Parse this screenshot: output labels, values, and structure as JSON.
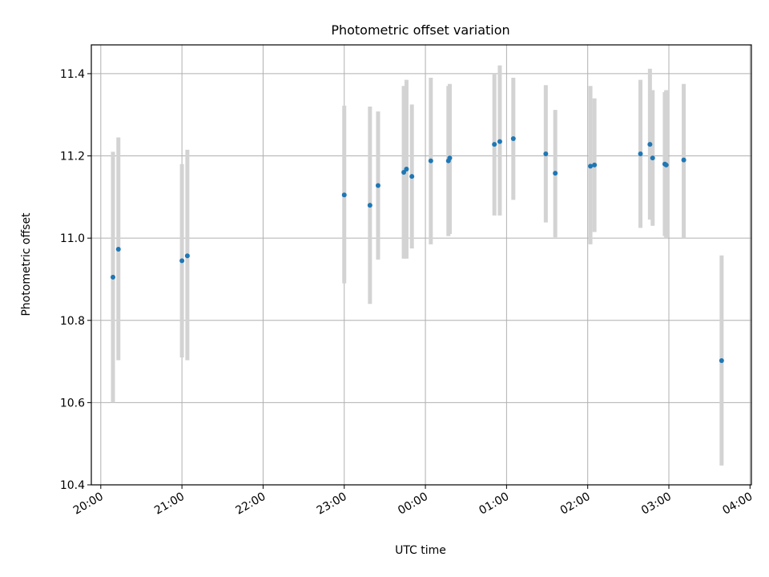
{
  "chart_data": {
    "type": "scatter",
    "title": "Photometric offset variation",
    "xlabel": "UTC time",
    "ylabel": "Photometric offset",
    "x_unit": "UTC",
    "xlim": [
      "19:53",
      "04:01"
    ],
    "ylim": [
      10.4,
      11.47
    ],
    "x_ticks": [
      "20:00",
      "21:00",
      "22:00",
      "23:00",
      "00:00",
      "01:00",
      "02:00",
      "03:00",
      "04:00"
    ],
    "y_ticks": [
      "10.4",
      "10.6",
      "10.8",
      "11.0",
      "11.2",
      "11.4"
    ],
    "grid": true,
    "colors": {
      "points": "#1f77b4",
      "errorbars": "#d3d3d3",
      "grid": "#b0b0b0"
    },
    "points": [
      {
        "x": "20:09",
        "y": 10.905,
        "ylow": 10.6,
        "yhigh": 11.21
      },
      {
        "x": "20:13",
        "y": 10.973,
        "ylow": 10.703,
        "yhigh": 11.245
      },
      {
        "x": "21:00",
        "y": 10.945,
        "ylow": 10.71,
        "yhigh": 11.18
      },
      {
        "x": "21:04",
        "y": 10.957,
        "ylow": 10.703,
        "yhigh": 11.215
      },
      {
        "x": "23:00",
        "y": 11.105,
        "ylow": 10.89,
        "yhigh": 11.322
      },
      {
        "x": "23:19",
        "y": 11.08,
        "ylow": 10.84,
        "yhigh": 11.32
      },
      {
        "x": "23:25",
        "y": 11.128,
        "ylow": 10.948,
        "yhigh": 11.308
      },
      {
        "x": "23:44",
        "y": 11.16,
        "ylow": 10.95,
        "yhigh": 11.37
      },
      {
        "x": "23:46",
        "y": 11.168,
        "ylow": 10.95,
        "yhigh": 11.385
      },
      {
        "x": "23:50",
        "y": 11.15,
        "ylow": 10.975,
        "yhigh": 11.325
      },
      {
        "x": "00:04",
        "y": 11.188,
        "ylow": 10.985,
        "yhigh": 11.39
      },
      {
        "x": "00:17",
        "y": 11.188,
        "ylow": 11.005,
        "yhigh": 11.37
      },
      {
        "x": "00:18",
        "y": 11.195,
        "ylow": 11.01,
        "yhigh": 11.375
      },
      {
        "x": "00:51",
        "y": 11.228,
        "ylow": 11.055,
        "yhigh": 11.4
      },
      {
        "x": "00:55",
        "y": 11.235,
        "ylow": 11.055,
        "yhigh": 11.42
      },
      {
        "x": "01:05",
        "y": 11.242,
        "ylow": 11.093,
        "yhigh": 11.39
      },
      {
        "x": "01:29",
        "y": 11.205,
        "ylow": 11.038,
        "yhigh": 11.372
      },
      {
        "x": "01:36",
        "y": 11.158,
        "ylow": 11.002,
        "yhigh": 11.312
      },
      {
        "x": "02:02",
        "y": 11.175,
        "ylow": 10.985,
        "yhigh": 11.37
      },
      {
        "x": "02:05",
        "y": 11.178,
        "ylow": 11.015,
        "yhigh": 11.34
      },
      {
        "x": "02:39",
        "y": 11.205,
        "ylow": 11.025,
        "yhigh": 11.385
      },
      {
        "x": "02:46",
        "y": 11.228,
        "ylow": 11.045,
        "yhigh": 11.412
      },
      {
        "x": "02:48",
        "y": 11.195,
        "ylow": 11.03,
        "yhigh": 11.36
      },
      {
        "x": "02:57",
        "y": 11.18,
        "ylow": 11.005,
        "yhigh": 11.355
      },
      {
        "x": "02:58",
        "y": 11.178,
        "ylow": 10.998,
        "yhigh": 11.36
      },
      {
        "x": "03:11",
        "y": 11.19,
        "ylow": 11.0,
        "yhigh": 11.375
      },
      {
        "x": "03:39",
        "y": 10.702,
        "ylow": 10.447,
        "yhigh": 10.958
      }
    ]
  }
}
